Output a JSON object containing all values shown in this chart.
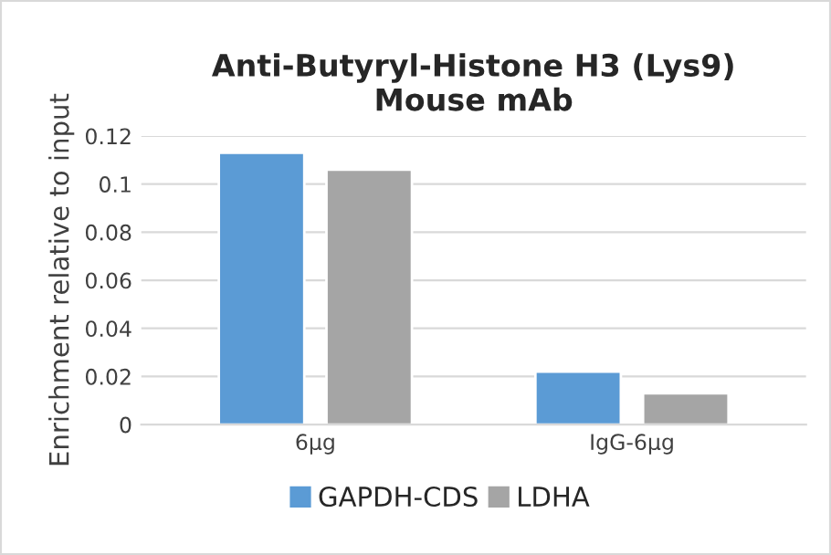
{
  "chart_data": {
    "type": "bar",
    "title": "Anti-Butyryl-Histone H3 (Lys9)\nMouse mAb",
    "ylabel": "Enrichment relative to input",
    "categories": [
      "6μg",
      "IgG-6μg"
    ],
    "series": [
      {
        "name": "GAPDH-CDS",
        "color": "#5b9bd5",
        "values": [
          0.113,
          0.022
        ]
      },
      {
        "name": "LDHA",
        "color": "#a5a5a5",
        "values": [
          0.106,
          0.013
        ]
      }
    ],
    "ylim": [
      0,
      0.12
    ],
    "yticks": [
      0,
      {
        "value": 0.02,
        "label": "0.02"
      },
      {
        "value": 0.04,
        "label": "0.04"
      },
      {
        "value": 0.06,
        "label": "0.06"
      },
      {
        "value": 0.08,
        "label": "0.08"
      },
      0.1,
      0.12
    ],
    "grid": "y",
    "legend": "bottom"
  }
}
